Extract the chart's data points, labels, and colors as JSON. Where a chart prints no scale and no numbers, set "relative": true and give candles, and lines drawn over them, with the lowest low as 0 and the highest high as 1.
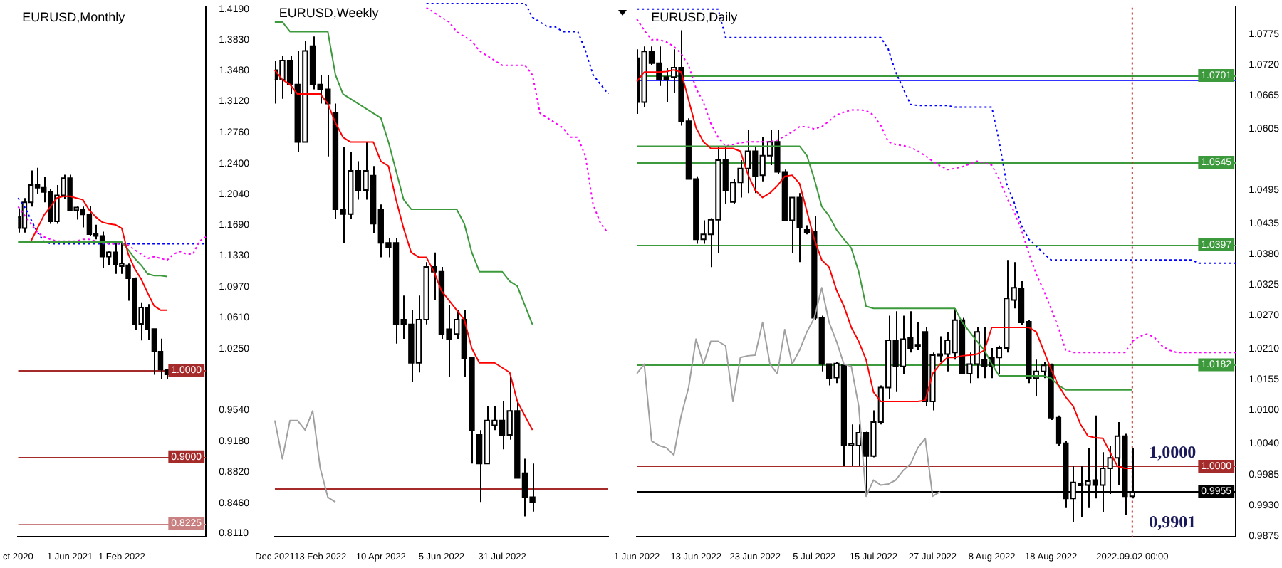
{
  "chart_data": [
    {
      "type": "candlestick",
      "title": "EURUSD,Monthly",
      "categories": [
        "ct 2020",
        null,
        null,
        null,
        null,
        null,
        null,
        null,
        "1 Jun 2021",
        null,
        null,
        null,
        null,
        null,
        null,
        null,
        "1 Feb 2022",
        null,
        null,
        null,
        null,
        null,
        null,
        null,
        null,
        null,
        null,
        null,
        null,
        null
      ],
      "ohlc": [
        [
          1.178,
          1.188,
          1.16,
          1.165
        ],
        [
          1.165,
          1.2,
          1.16,
          1.195
        ],
        [
          1.195,
          1.232,
          1.19,
          1.215
        ],
        [
          1.215,
          1.235,
          1.205,
          1.212
        ],
        [
          1.212,
          1.225,
          1.195,
          1.207
        ],
        [
          1.207,
          1.21,
          1.17,
          1.173
        ],
        [
          1.173,
          1.215,
          1.17,
          1.203
        ],
        [
          1.203,
          1.227,
          1.199,
          1.223
        ],
        [
          1.223,
          1.227,
          1.185,
          1.186
        ],
        [
          1.186,
          1.19,
          1.175,
          1.189
        ],
        [
          1.187,
          1.19,
          1.166,
          1.181
        ],
        [
          1.181,
          1.191,
          1.156,
          1.158
        ],
        [
          1.158,
          1.169,
          1.152,
          1.156
        ],
        [
          1.156,
          1.161,
          1.119,
          1.132
        ],
        [
          1.132,
          1.138,
          1.122,
          1.137
        ],
        [
          1.137,
          1.148,
          1.112,
          1.123
        ],
        [
          1.121,
          1.149,
          1.112,
          1.124
        ],
        [
          1.122,
          1.124,
          1.081,
          1.107
        ],
        [
          1.107,
          1.108,
          1.047,
          1.054
        ],
        [
          1.054,
          1.079,
          1.035,
          1.073
        ],
        [
          1.073,
          1.077,
          1.036,
          1.048
        ],
        [
          1.048,
          1.048,
          0.995,
          1.022
        ],
        [
          1.022,
          1.037,
          0.99,
          1.001
        ],
        [
          1.001,
          1.002,
          0.99,
          0.9955
        ],
        null,
        null,
        null,
        null,
        null,
        null
      ],
      "series": [
        {
          "type": "line",
          "color": "#ff0000",
          "values": [
            null,
            null,
            1.15,
            1.165,
            1.18,
            1.19,
            1.2,
            1.202,
            1.202,
            1.2,
            1.198,
            1.186,
            1.178,
            1.172,
            1.17,
            1.169,
            1.165,
            1.135,
            1.118,
            1.106,
            1.09,
            1.075,
            1.07,
            1.07,
            null,
            null,
            null,
            null,
            null,
            null
          ]
        },
        {
          "type": "line",
          "color": "#3c9a3c",
          "values": [
            1.149,
            1.149,
            1.149,
            1.149,
            1.149,
            1.149,
            1.149,
            1.149,
            1.149,
            1.149,
            1.149,
            1.149,
            1.149,
            1.149,
            1.149,
            1.149,
            1.149,
            1.14,
            1.13,
            1.122,
            1.112,
            1.11,
            1.11,
            1.109,
            null,
            null,
            null,
            null,
            null,
            null
          ]
        },
        {
          "type": "line",
          "color": "#ff00ff",
          "line_style": "dotted",
          "values": [
            1.19,
            1.18,
            1.17,
            1.16,
            1.155,
            1.152,
            1.15,
            1.15,
            1.15,
            1.15,
            1.152,
            1.152,
            1.15,
            1.148,
            1.147,
            1.147,
            1.147,
            1.145,
            1.14,
            1.135,
            1.13,
            1.132,
            1.13,
            1.128,
            1.135,
            1.138,
            1.135,
            1.135,
            1.15,
            1.155
          ]
        },
        {
          "type": "line",
          "color": "#0000ff",
          "line_style": "dotted",
          "values": [
            1.2,
            1.19,
            1.175,
            1.16,
            1.15,
            1.147,
            1.147,
            1.147,
            1.147,
            1.147,
            1.147,
            1.147,
            1.147,
            1.147,
            1.147,
            1.147,
            1.147,
            1.147,
            1.147,
            1.147,
            1.147,
            1.147,
            1.147,
            1.147,
            1.147,
            1.147,
            1.147,
            1.147,
            1.147,
            1.147
          ]
        }
      ],
      "ylim": [
        0.807,
        1.421
      ],
      "yticks": [
        {
          "value": 1.419,
          "label": "1.4190"
        },
        {
          "value": 1.383,
          "label": "1.3830"
        },
        {
          "value": 1.348,
          "label": "1.3480"
        },
        {
          "value": 1.312,
          "label": "1.3120"
        },
        {
          "value": 1.276,
          "label": "1.2760"
        },
        {
          "value": 1.24,
          "label": "1.2400"
        },
        {
          "value": 1.204,
          "label": "1.2040"
        },
        {
          "value": 1.169,
          "label": "1.1690"
        },
        {
          "value": 1.133,
          "label": "1.1330"
        },
        {
          "value": 1.097,
          "label": "1.0970"
        },
        {
          "value": 1.061,
          "label": "1.0610"
        },
        {
          "value": 1.025,
          "label": "1.0250"
        },
        {
          "value": 0.954,
          "label": "0.9540"
        },
        {
          "value": 0.918,
          "label": "0.9180"
        },
        {
          "value": 0.882,
          "label": "0.8820"
        },
        {
          "value": 0.846,
          "label": "0.8460"
        },
        {
          "value": 0.811,
          "label": "0.8110"
        }
      ],
      "ref_lines": [
        {
          "axis": "y",
          "value": 1.0,
          "label": "1.0000",
          "color": "#a52a2a"
        },
        {
          "axis": "y",
          "value": 0.9,
          "label": "0.9000",
          "color": "#a52a2a"
        },
        {
          "axis": "y",
          "value": 0.8225,
          "label": "0.8225",
          "color": "#c98080"
        }
      ]
    },
    {
      "type": "candlestick",
      "title": "EURUSD,Weekly",
      "relative": true,
      "tick_labels": "x",
      "categories": [
        "Dec 2021",
        null,
        null,
        null,
        null,
        null,
        "13 Feb 2022",
        null,
        null,
        null,
        null,
        null,
        null,
        null,
        "10 Apr 2022",
        null,
        null,
        null,
        null,
        null,
        null,
        null,
        "5 Jun 2022",
        null,
        null,
        null,
        null,
        null,
        null,
        null,
        "31 Jul 2022",
        null,
        null,
        null,
        null,
        null,
        null,
        null,
        null,
        null,
        null,
        null,
        null,
        null,
        null
      ],
      "ohlc": [
        [
          0.93,
          0.95,
          0.86,
          0.91
        ],
        [
          0.91,
          0.96,
          0.87,
          0.95
        ],
        [
          0.95,
          0.96,
          0.88,
          0.9
        ],
        [
          0.9,
          0.97,
          0.76,
          0.78
        ],
        [
          0.78,
          0.99,
          0.78,
          0.97
        ],
        [
          0.98,
          1.0,
          0.89,
          0.9
        ],
        [
          0.9,
          0.92,
          0.86,
          0.89
        ],
        [
          0.89,
          0.92,
          0.75,
          0.86
        ],
        [
          0.84,
          0.86,
          0.62,
          0.64
        ],
        [
          0.64,
          0.77,
          0.57,
          0.63
        ],
        [
          0.63,
          0.76,
          0.62,
          0.72
        ],
        [
          0.72,
          0.74,
          0.66,
          0.68
        ],
        [
          0.68,
          0.78,
          0.66,
          0.72
        ],
        [
          0.71,
          0.73,
          0.59,
          0.61
        ],
        [
          0.64,
          0.65,
          0.54,
          0.57
        ],
        [
          0.57,
          0.58,
          0.54,
          0.56
        ],
        [
          0.57,
          0.58,
          0.36,
          0.4
        ],
        [
          0.41,
          0.46,
          0.37,
          0.4
        ],
        [
          0.4,
          0.43,
          0.28,
          0.32
        ],
        [
          0.32,
          0.46,
          0.3,
          0.41
        ],
        [
          0.41,
          0.53,
          0.4,
          0.52
        ],
        [
          0.52,
          0.55,
          0.45,
          0.51
        ],
        [
          0.51,
          0.52,
          0.37,
          0.38
        ],
        [
          0.39,
          0.44,
          0.29,
          0.37
        ],
        [
          0.38,
          0.43,
          0.37,
          0.41
        ],
        [
          0.41,
          0.43,
          0.29,
          0.33
        ],
        [
          0.33,
          0.33,
          0.11,
          0.18
        ],
        [
          0.17,
          0.18,
          0.03,
          0.11
        ],
        [
          0.11,
          0.23,
          0.11,
          0.2
        ],
        [
          0.19,
          0.23,
          0.18,
          0.2
        ],
        [
          0.2,
          0.24,
          0.14,
          0.17
        ],
        [
          0.17,
          0.29,
          0.16,
          0.22
        ],
        [
          0.22,
          0.24,
          0.08,
          0.08
        ],
        [
          0.09,
          0.12,
          0.0,
          0.04
        ],
        [
          0.04,
          0.11,
          0.01,
          0.03
        ],
        null,
        null,
        null,
        null,
        null,
        null,
        null,
        null,
        null,
        null
      ],
      "series": [
        {
          "type": "line",
          "color": "#ff0000",
          "values": [
            0.93,
            0.91,
            0.9,
            0.88,
            0.88,
            0.88,
            0.88,
            0.86,
            0.82,
            0.79,
            0.78,
            0.78,
            0.78,
            0.78,
            0.74,
            0.73,
            0.66,
            0.6,
            0.55,
            0.54,
            0.54,
            0.51,
            0.47,
            0.45,
            0.43,
            0.41,
            0.35,
            0.32,
            0.32,
            0.32,
            0.31,
            0.3,
            0.24,
            0.21,
            0.18,
            null,
            null,
            null,
            null,
            null,
            null,
            null,
            null,
            null,
            null
          ]
        },
        {
          "type": "line",
          "color": "#3c9a3c",
          "values": [
            1.03,
            1.03,
            1.01,
            1.01,
            1.01,
            1.01,
            1.01,
            1.01,
            0.92,
            0.88,
            0.87,
            0.86,
            0.85,
            0.84,
            0.83,
            0.78,
            0.72,
            0.66,
            0.64,
            0.64,
            0.64,
            0.64,
            0.64,
            0.64,
            0.64,
            0.61,
            0.55,
            0.51,
            0.51,
            0.51,
            0.51,
            0.49,
            0.48,
            0.44,
            0.4,
            null,
            null,
            null,
            null,
            null,
            null,
            null,
            null,
            null,
            null
          ]
        },
        {
          "type": "line",
          "color": "#ff00ff",
          "line_style": "dotted",
          "values": [
            null,
            null,
            null,
            null,
            null,
            null,
            null,
            null,
            null,
            null,
            null,
            null,
            null,
            null,
            null,
            null,
            null,
            null,
            null,
            null,
            1.06,
            1.05,
            1.04,
            1.03,
            1.01,
            1.0,
            0.99,
            0.97,
            0.96,
            0.95,
            0.94,
            0.94,
            0.94,
            0.94,
            0.92,
            0.84,
            0.83,
            0.82,
            0.81,
            0.79,
            0.79,
            0.75,
            0.65,
            0.61,
            0.59
          ]
        },
        {
          "type": "line",
          "color": "#0000ff",
          "line_style": "dotted",
          "values": [
            null,
            null,
            null,
            null,
            null,
            null,
            null,
            null,
            null,
            null,
            null,
            null,
            null,
            null,
            null,
            null,
            null,
            null,
            null,
            null,
            1.07,
            1.07,
            1.07,
            1.07,
            1.07,
            1.07,
            1.07,
            1.07,
            1.07,
            1.07,
            1.07,
            1.07,
            1.07,
            1.07,
            1.04,
            1.03,
            1.02,
            1.02,
            1.01,
            1.01,
            1.01,
            0.97,
            0.92,
            0.9,
            0.88
          ]
        },
        {
          "type": "line",
          "color": "#a0a0a0",
          "values": [
            0.2,
            0.12,
            0.2,
            0.2,
            0.18,
            0.22,
            0.1,
            0.04,
            0.03,
            null,
            null,
            null,
            null,
            null,
            null,
            null,
            null,
            null,
            null,
            null,
            null,
            null,
            null,
            null,
            null,
            null,
            null,
            null,
            null,
            null,
            null,
            null,
            null,
            null,
            null,
            null,
            null,
            null,
            null,
            null,
            null,
            null,
            null,
            null,
            null
          ]
        }
      ],
      "ref_lines": [
        {
          "axis": "y",
          "value": 0.06,
          "color": "#a52a2a"
        }
      ]
    },
    {
      "type": "candlestick",
      "title": "EURUSD,Daily",
      "categories": [
        "1 Jun 2022",
        null,
        null,
        null,
        null,
        null,
        null,
        null,
        "13 Jun 2022",
        null,
        null,
        null,
        null,
        null,
        null,
        null,
        "23 Jun 2022",
        null,
        null,
        null,
        null,
        null,
        null,
        null,
        "5 Jul 2022",
        null,
        null,
        null,
        null,
        null,
        null,
        null,
        "15 Jul 2022",
        null,
        null,
        null,
        null,
        null,
        null,
        null,
        "27 Jul 2022",
        null,
        null,
        null,
        null,
        null,
        null,
        null,
        "8 Aug 2022",
        null,
        null,
        null,
        null,
        null,
        null,
        null,
        "18 Aug 2022",
        null,
        null,
        null,
        null,
        null,
        null,
        null,
        null,
        null,
        null,
        "2022.09.02 00:00",
        null,
        null,
        null,
        null,
        null,
        null,
        null,
        null,
        null,
        null,
        null,
        null,
        null,
        null
      ],
      "ohlc": [
        [
          1.0732,
          1.0748,
          1.0632,
          1.0653
        ],
        [
          1.0653,
          1.0753,
          1.0644,
          1.0744
        ],
        [
          1.0744,
          1.0753,
          1.0719,
          1.0723
        ],
        [
          1.0723,
          1.0753,
          1.0682,
          1.0694
        ],
        [
          1.0698,
          1.0715,
          1.0653,
          1.0694
        ],
        [
          1.0698,
          1.0748,
          1.0669,
          1.0715
        ],
        [
          1.0715,
          1.0782,
          1.0611,
          1.0619
        ],
        [
          1.0619,
          1.0624,
          1.0515,
          1.0515
        ],
        [
          1.0515,
          1.052,
          1.0399,
          1.0407
        ],
        [
          1.0407,
          1.0441,
          1.0399,
          1.0416
        ],
        [
          1.0416,
          1.0445,
          1.0357,
          1.0442
        ],
        [
          1.0442,
          1.0574,
          1.0382,
          1.0549
        ],
        [
          1.0549,
          1.0574,
          1.047,
          1.0495
        ],
        [
          1.0474,
          1.0515,
          1.047,
          1.0509
        ],
        [
          1.0509,
          1.0549,
          1.0482,
          1.0534
        ],
        [
          1.0534,
          1.0603,
          1.049,
          1.0565
        ],
        [
          1.0565,
          1.0574,
          1.049,
          1.052
        ],
        [
          1.0522,
          1.059,
          1.0511,
          1.0557
        ],
        [
          1.0557,
          1.0603,
          1.054,
          1.0582
        ],
        [
          1.0582,
          1.0603,
          1.0524,
          1.0528
        ],
        [
          1.0528,
          1.0532,
          1.0441,
          1.0441
        ],
        [
          1.0441,
          1.0482,
          1.0382,
          1.0482
        ],
        [
          1.0482,
          1.049,
          1.0366,
          1.0428
        ],
        [
          1.0424,
          1.0432,
          1.0416,
          1.042
        ],
        [
          1.042,
          1.0449,
          1.0262,
          1.0266
        ],
        [
          1.0266,
          1.027,
          1.017,
          1.0183
        ],
        [
          1.0183,
          1.0183,
          1.0145,
          1.0158
        ],
        [
          1.0159,
          1.0187,
          1.0149,
          1.0184
        ],
        [
          1.0181,
          1.0183,
          1.0,
          1.0037
        ],
        [
          1.0037,
          1.0075,
          1.0,
          1.004
        ],
        [
          1.0037,
          1.0075,
          1.0,
          1.006
        ],
        [
          1.006,
          1.0062,
          0.995,
          1.0018
        ],
        [
          1.0018,
          1.01,
          1.0016,
          1.0079
        ],
        [
          1.0079,
          1.0145,
          1.0075,
          1.0141
        ],
        [
          1.0141,
          1.027,
          1.012,
          1.0226
        ],
        [
          1.0226,
          1.0278,
          1.0133,
          1.0179
        ],
        [
          1.0179,
          1.027,
          1.0166,
          1.0228
        ],
        [
          1.0231,
          1.0278,
          1.0204,
          1.0212
        ],
        [
          1.0216,
          1.0258,
          1.0208,
          1.0218
        ],
        [
          1.0241,
          1.0249,
          1.0108,
          1.0116
        ],
        [
          1.0116,
          1.0204,
          1.01,
          1.0199
        ],
        [
          1.0199,
          1.0233,
          1.0187,
          1.0201
        ],
        [
          1.0201,
          1.0241,
          1.017,
          1.0226
        ],
        [
          1.0204,
          1.0283,
          1.0191,
          1.0262
        ],
        [
          1.0262,
          1.0266,
          1.0166,
          1.0166
        ],
        [
          1.0166,
          1.0204,
          1.0149,
          1.0183
        ],
        [
          1.0183,
          1.0249,
          1.0158,
          1.0241
        ],
        [
          1.0191,
          1.0249,
          1.0158,
          1.0179
        ],
        [
          1.0195,
          1.0212,
          1.0158,
          1.0179
        ],
        [
          1.0195,
          1.0216,
          1.0166,
          1.0212
        ],
        [
          1.0212,
          1.037,
          1.0204,
          1.0301
        ],
        [
          1.0298,
          1.0366,
          1.0283,
          1.032
        ],
        [
          1.0318,
          1.0332,
          1.0253,
          1.0258
        ],
        [
          1.0259,
          1.0262,
          1.0149,
          1.0158
        ],
        [
          1.0158,
          1.0191,
          1.0125,
          1.017
        ],
        [
          1.017,
          1.0187,
          1.0158,
          1.0181
        ],
        [
          1.0181,
          1.0184,
          1.0083,
          1.0087
        ],
        [
          1.0087,
          1.0091,
          1.0037,
          1.0041
        ],
        [
          1.0041,
          1.0046,
          0.9925,
          0.9942
        ],
        [
          0.9942,
          1.0,
          0.99,
          0.9971
        ],
        [
          0.9966,
          1.0,
          0.9908,
          0.9968
        ],
        [
          0.9966,
          1.0033,
          0.9925,
          0.9973
        ],
        [
          0.9975,
          1.0091,
          0.9942,
          0.9966
        ],
        [
          0.9966,
          1.0025,
          0.9917,
          0.9996
        ],
        [
          0.9996,
          1.0037,
          0.995,
          1.0015
        ],
        [
          1.0015,
          1.0079,
          0.9966,
          1.0054
        ],
        [
          1.0054,
          1.0058,
          0.9912,
          0.9946
        ],
        [
          0.9946,
          1.0033,
          0.9942,
          0.9954
        ],
        null,
        null,
        null,
        null,
        null,
        null,
        null,
        null,
        null,
        null,
        null,
        null,
        null,
        null
      ],
      "series": [
        {
          "type": "line",
          "color": "#ff0000",
          "values": [
            1.069,
            1.0707,
            1.0707,
            1.0707,
            1.0708,
            1.0711,
            1.0707,
            1.0657,
            1.0607,
            1.0582,
            1.057,
            1.057,
            1.057,
            1.057,
            1.0565,
            1.0524,
            1.0495,
            1.0482,
            1.049,
            1.0503,
            1.052,
            1.0522,
            1.0507,
            1.0457,
            1.0407,
            1.037,
            1.0357,
            1.0316,
            1.0287,
            1.0249,
            1.0224,
            1.0191,
            1.0133,
            1.0116,
            1.0116,
            1.0116,
            1.0116,
            1.0116,
            1.0116,
            1.0118,
            1.0166,
            1.0183,
            1.0195,
            1.0195,
            1.0198,
            1.0199,
            1.0201,
            1.0208,
            1.0249,
            1.0249,
            1.0249,
            1.0249,
            1.0249,
            1.0249,
            1.0241,
            1.0208,
            1.0174,
            1.0145,
            1.0124,
            1.0108,
            1.0075,
            1.0054,
            1.0051,
            1.005,
            1.0025,
            1.0,
            0.9996,
            0.9996,
            null,
            null,
            null,
            null,
            null,
            null,
            null,
            null,
            null,
            null,
            null,
            null,
            null,
            null
          ]
        },
        {
          "type": "line",
          "color": "#3c9a3c",
          "values": [
            1.0574,
            1.0574,
            1.0574,
            1.0574,
            1.0574,
            1.0574,
            1.0574,
            1.0574,
            1.0574,
            1.0574,
            1.0574,
            1.0574,
            1.0574,
            1.0574,
            1.0574,
            1.0574,
            1.0574,
            1.0574,
            1.0574,
            1.0574,
            1.0574,
            1.0574,
            1.0574,
            1.0557,
            1.0515,
            1.0466,
            1.0449,
            1.0424,
            1.0407,
            1.0391,
            1.0349,
            1.0287,
            1.0283,
            1.0283,
            1.0283,
            1.0283,
            1.0283,
            1.0283,
            1.0283,
            1.0283,
            1.0283,
            1.0283,
            1.0283,
            1.0283,
            1.0258,
            1.0241,
            1.0224,
            1.0208,
            1.0183,
            1.0162,
            1.0162,
            1.0162,
            1.0162,
            1.0162,
            1.0162,
            1.0162,
            1.0158,
            1.0145,
            1.0137,
            1.0137,
            1.0137,
            1.0137,
            1.0137,
            1.0137,
            1.0137,
            1.0137,
            1.0137,
            1.0137,
            null,
            null,
            null,
            null,
            null,
            null,
            null,
            null,
            null,
            null,
            null,
            null,
            null,
            null
          ]
        },
        {
          "type": "line",
          "color": "#ff00ff",
          "line_style": "dotted",
          "values": [
            1.0802,
            1.0782,
            1.0765,
            1.0765,
            1.0761,
            1.0753,
            1.074,
            1.0719,
            1.0678,
            1.0653,
            1.0615,
            1.059,
            1.0574,
            1.0577,
            1.058,
            1.0582,
            1.0582,
            1.0582,
            1.0582,
            1.0585,
            1.0592,
            1.06,
            1.0609,
            1.0609,
            1.0605,
            1.0609,
            1.0619,
            1.063,
            1.0635,
            1.0639,
            1.0639,
            1.0638,
            1.063,
            1.0611,
            1.0582,
            1.0577,
            1.0575,
            1.0572,
            1.0565,
            1.0557,
            1.0547,
            1.0539,
            1.0532,
            1.0534,
            1.0537,
            1.0542,
            1.0547,
            1.0544,
            1.054,
            1.0515,
            1.0482,
            1.0457,
            1.0424,
            1.0382,
            1.0345,
            1.0316,
            1.0283,
            1.0249,
            1.0208,
            1.0204,
            1.0204,
            1.0204,
            1.0204,
            1.0204,
            1.0204,
            1.0204,
            1.0204,
            1.0224,
            1.0233,
            1.0237,
            1.0231,
            1.0216,
            1.0208,
            1.0204,
            1.0204,
            1.0204,
            1.0204,
            1.0204,
            1.0204,
            1.0204,
            1.0204,
            1.0204
          ]
        },
        {
          "type": "line",
          "color": "#0000ff",
          "line_style": "dotted",
          "values": [
            1.082,
            1.082,
            1.082,
            1.082,
            1.082,
            1.082,
            1.082,
            1.082,
            1.082,
            1.082,
            1.082,
            1.082,
            1.0769,
            1.0769,
            1.0769,
            1.0769,
            1.0769,
            1.0769,
            1.0769,
            1.0769,
            1.0769,
            1.0769,
            1.0769,
            1.0769,
            1.0769,
            1.0769,
            1.0769,
            1.0769,
            1.0769,
            1.0769,
            1.0769,
            1.0769,
            1.0769,
            1.0769,
            1.0748,
            1.0707,
            1.0678,
            1.0649,
            1.0647,
            1.0647,
            1.0647,
            1.0647,
            1.0647,
            1.0644,
            1.0644,
            1.0644,
            1.0644,
            1.0644,
            1.0644,
            1.0582,
            1.0507,
            1.0474,
            1.0432,
            1.0407,
            1.0395,
            1.0382,
            1.037,
            1.037,
            1.037,
            1.037,
            1.037,
            1.037,
            1.037,
            1.037,
            1.037,
            1.037,
            1.037,
            1.037,
            1.037,
            1.037,
            1.037,
            1.037,
            1.037,
            1.037,
            1.037,
            1.037,
            1.0364,
            1.0364,
            1.0364,
            1.0364,
            1.0364,
            1.0364
          ]
        },
        {
          "type": "line",
          "color": "#a0a0a0",
          "values": [
            1.0166,
            1.0183,
            1.0045,
            1.0037,
            1.0033,
            1.002,
            1.0091,
            1.0141,
            1.0228,
            1.0183,
            1.0224,
            1.0224,
            1.0216,
            1.0116,
            1.0195,
            1.0198,
            1.0199,
            1.0258,
            1.0183,
            1.0166,
            1.0245,
            1.0183,
            1.0208,
            1.0241,
            1.0266,
            1.032,
            1.0258,
            1.0224,
            1.0183,
            1.0179,
            1.0108,
            0.9946,
            0.9975,
            0.9966,
            0.9968,
            0.9975,
            0.9992,
            1.0004,
            1.0033,
            1.005,
            0.9946,
            0.9954,
            null,
            null,
            null,
            null,
            null,
            null,
            null,
            null,
            null,
            null,
            null,
            null,
            null,
            null,
            null,
            null,
            null,
            null,
            null,
            null,
            null,
            null,
            null,
            null,
            null,
            null,
            null,
            null,
            null,
            null,
            null,
            null,
            null,
            null,
            null,
            null,
            null,
            null,
            null,
            null
          ]
        }
      ],
      "ylim": [
        0.9873,
        1.0823
      ],
      "yticks": [
        {
          "value": 1.0775,
          "label": "1.0775"
        },
        {
          "value": 1.072,
          "label": "1.0720"
        },
        {
          "value": 1.0665,
          "label": "1.0665"
        },
        {
          "value": 1.0605,
          "label": "1.0605"
        },
        {
          "value": 1.0495,
          "label": "1.0495"
        },
        {
          "value": 1.0435,
          "label": "1.0435"
        },
        {
          "value": 1.038,
          "label": "1.0380"
        },
        {
          "value": 1.0325,
          "label": "1.0325"
        },
        {
          "value": 1.027,
          "label": "1.0270"
        },
        {
          "value": 1.021,
          "label": "1.0210"
        },
        {
          "value": 1.0155,
          "label": "1.0155"
        },
        {
          "value": 1.01,
          "label": "1.0100"
        },
        {
          "value": 1.004,
          "label": "1.0040"
        },
        {
          "value": 0.9985,
          "label": "0.9985"
        },
        {
          "value": 0.993,
          "label": "0.9930"
        },
        {
          "value": 0.9875,
          "label": "0.9875"
        }
      ],
      "ref_lines": [
        {
          "axis": "y",
          "value": 1.0701,
          "label": "1.0701",
          "color": "#3c9a3c"
        },
        {
          "axis": "y",
          "value": 1.0694,
          "color": "#3333ff"
        },
        {
          "axis": "y",
          "value": 1.0545,
          "label": "1.0545",
          "color": "#3c9a3c"
        },
        {
          "axis": "y",
          "value": 1.0397,
          "label": "1.0397",
          "color": "#3c9a3c"
        },
        {
          "axis": "y",
          "value": 1.0182,
          "label": "1.0182",
          "color": "#3c9a3c"
        },
        {
          "axis": "y",
          "value": 1.0,
          "label": "1.0000",
          "color": "#a52a2a"
        },
        {
          "axis": "y",
          "value": 0.9955,
          "label": "0.9955",
          "color": "#000000"
        },
        {
          "axis": "x",
          "value": "2022.09.02 00:00",
          "color": "#c0392b",
          "line_style": "dotted"
        }
      ],
      "annotations": [
        {
          "text": "1,0000",
          "y": 1.0
        },
        "0,9901"
      ]
    }
  ]
}
